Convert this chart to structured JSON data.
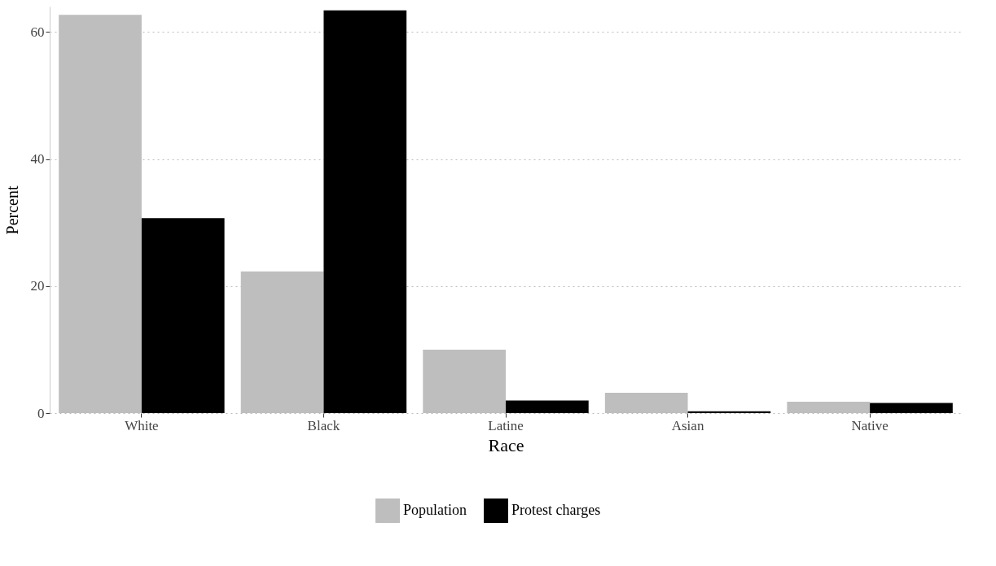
{
  "chart_data": {
    "type": "bar",
    "xlabel": "Race",
    "ylabel": "Percent",
    "categories": [
      "White",
      "Black",
      "Latine",
      "Asian",
      "Native"
    ],
    "series": [
      {
        "name": "Population",
        "color": "#bebebe",
        "values": [
          62.7,
          22.3,
          10.0,
          3.2,
          1.8
        ]
      },
      {
        "name": "Protest charges",
        "color": "#000000",
        "values": [
          30.7,
          63.4,
          2.0,
          0.3,
          1.6
        ]
      }
    ],
    "ylim": [
      0,
      64
    ],
    "yticks": [
      0,
      20,
      40,
      60
    ],
    "grid": "y",
    "legend": "bottom"
  }
}
